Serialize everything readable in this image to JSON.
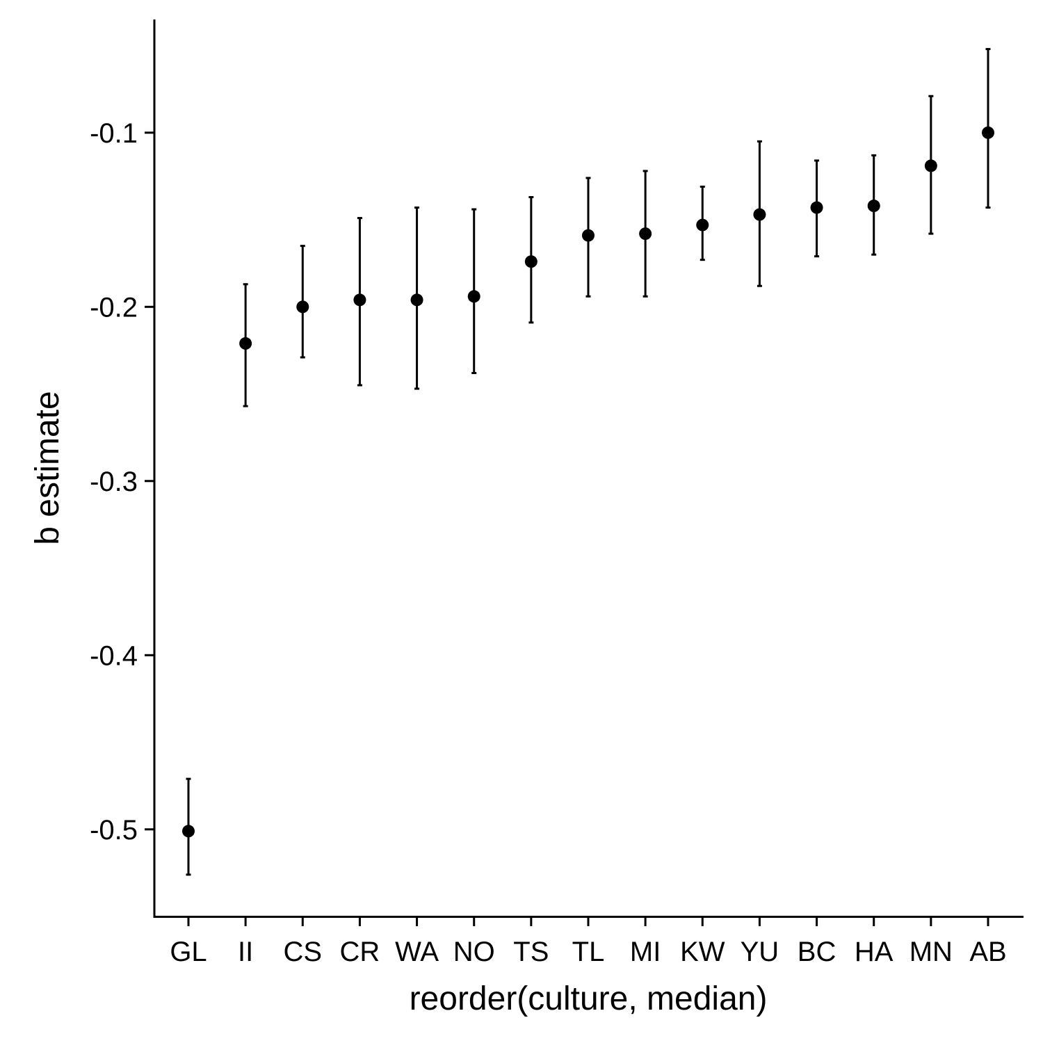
{
  "chart_data": {
    "type": "scatter",
    "xlabel": "reorder(culture, median)",
    "ylabel": "b estimate",
    "ylim": [
      -0.55,
      -0.035
    ],
    "y_ticks": [
      -0.5,
      -0.4,
      -0.3,
      -0.2,
      -0.1
    ],
    "y_tick_labels": [
      "-0.5",
      "-0.4",
      "-0.3",
      "-0.2",
      "-0.1"
    ],
    "grid": false,
    "categories": [
      "GL",
      "II",
      "CS",
      "CR",
      "WA",
      "NO",
      "TS",
      "TL",
      "MI",
      "KW",
      "YU",
      "BC",
      "HA",
      "MN",
      "AB"
    ],
    "series": [
      {
        "values": [
          -0.501,
          -0.221,
          -0.2,
          -0.196,
          -0.196,
          -0.194,
          -0.174,
          -0.159,
          -0.158,
          -0.153,
          -0.147,
          -0.143,
          -0.142,
          -0.119,
          -0.1
        ],
        "lower": [
          -0.526,
          -0.257,
          -0.229,
          -0.245,
          -0.247,
          -0.238,
          -0.209,
          -0.194,
          -0.194,
          -0.173,
          -0.188,
          -0.171,
          -0.17,
          -0.158,
          -0.143
        ],
        "upper": [
          -0.471,
          -0.187,
          -0.165,
          -0.149,
          -0.143,
          -0.144,
          -0.137,
          -0.126,
          -0.122,
          -0.131,
          -0.105,
          -0.116,
          -0.113,
          -0.079,
          -0.052
        ]
      }
    ],
    "colors": {
      "points": "#000000",
      "axes": "#000000"
    }
  }
}
